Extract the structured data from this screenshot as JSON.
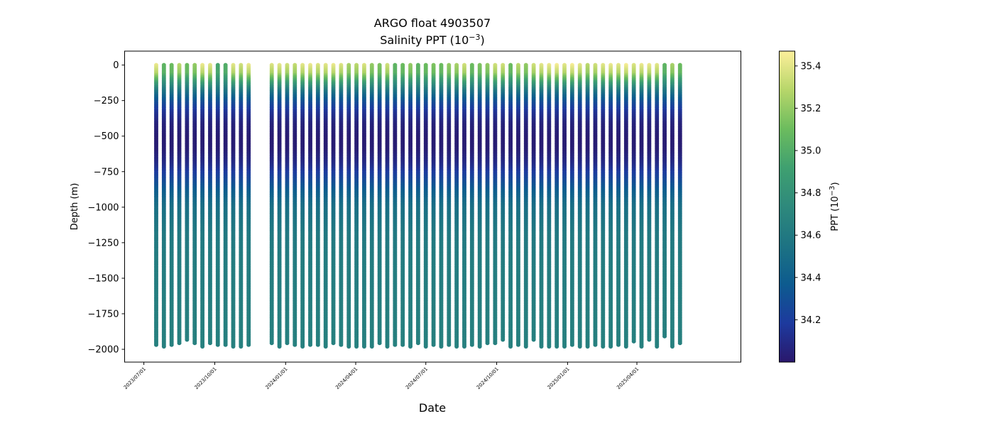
{
  "chart_data": {
    "type": "scatter",
    "title": "ARGO float 4903507",
    "subtitle_prefix": "Salinity PPT (10",
    "subtitle_exp": "−3",
    "subtitle_suffix": ")",
    "xlabel": "Date",
    "ylabel": "Depth (m)",
    "ylim": [
      -2090,
      98
    ],
    "yticks": [
      0,
      -250,
      -500,
      -750,
      -1000,
      -1250,
      -1500,
      -1750,
      -2000
    ],
    "ytick_labels": [
      "0",
      "−250",
      "−500",
      "−750",
      "−1000",
      "−1250",
      "−1500",
      "−1750",
      "−2000"
    ],
    "xlim": [
      "2023-06-06",
      "2025-08-14"
    ],
    "xticks": [
      "2023-07-01",
      "2023-10-01",
      "2024-01-01",
      "2024-04-01",
      "2024-07-01",
      "2024-10-01",
      "2025-01-01",
      "2025-04-01"
    ],
    "xtick_labels": [
      "2023/07/01",
      "2023/10/01",
      "2024/01/01",
      "2024/04/01",
      "2024/07/01",
      "2024/10/01",
      "2025/01/01",
      "2025/04/01"
    ],
    "colorbar": {
      "label_prefix": "PPT (10",
      "label_exp": "−3",
      "label_suffix": ")",
      "range": [
        34.0,
        35.47
      ],
      "ticks": [
        34.2,
        34.4,
        34.6,
        34.8,
        35.0,
        35.2,
        35.4
      ],
      "tick_labels": [
        "34.2",
        "34.4",
        "34.6",
        "34.8",
        "35.0",
        "35.2",
        "35.4"
      ],
      "colormap": "haline",
      "colors": [
        "#2a186c",
        "#1d3a9e",
        "#0d5b8f",
        "#1d7383",
        "#2e897c",
        "#3fa070",
        "#6cbc5e",
        "#b7d66a",
        "#fdef9a"
      ]
    },
    "profile_dates": [
      "2023-07-17",
      "2023-07-27",
      "2023-08-06",
      "2023-08-16",
      "2023-08-26",
      "2023-09-05",
      "2023-09-15",
      "2023-09-25",
      "2023-10-05",
      "2023-10-15",
      "2023-10-25",
      "2023-11-04",
      "2023-11-14",
      "2023-12-14",
      "2023-12-24",
      "2024-01-03",
      "2024-01-13",
      "2024-01-23",
      "2024-02-02",
      "2024-02-12",
      "2024-02-22",
      "2024-03-03",
      "2024-03-13",
      "2024-03-23",
      "2024-04-02",
      "2024-04-12",
      "2024-04-22",
      "2024-05-02",
      "2024-05-12",
      "2024-05-22",
      "2024-06-01",
      "2024-06-11",
      "2024-06-21",
      "2024-07-01",
      "2024-07-11",
      "2024-07-21",
      "2024-07-31",
      "2024-08-10",
      "2024-08-20",
      "2024-08-30",
      "2024-09-09",
      "2024-09-19",
      "2024-09-29",
      "2024-10-09",
      "2024-10-19",
      "2024-10-29",
      "2024-11-08",
      "2024-11-18",
      "2024-11-28",
      "2024-12-08",
      "2024-12-18",
      "2024-12-28",
      "2025-01-07",
      "2025-01-17",
      "2025-01-27",
      "2025-02-06",
      "2025-02-16",
      "2025-02-26",
      "2025-03-08",
      "2025-03-18",
      "2025-03-28",
      "2025-04-07",
      "2025-04-17",
      "2025-04-27",
      "2025-05-07",
      "2025-05-17",
      "2025-05-27"
    ],
    "profile_max_depth": [
      -1970,
      -1980,
      -1975,
      -1965,
      -1935,
      -1960,
      -1980,
      -1965,
      -1975,
      -1975,
      -1980,
      -1980,
      -1975,
      -1965,
      -1980,
      -1960,
      -1975,
      -1985,
      -1970,
      -1975,
      -1980,
      -1965,
      -1975,
      -1985,
      -1980,
      -1980,
      -1980,
      -1965,
      -1980,
      -1970,
      -1970,
      -1980,
      -1965,
      -1980,
      -1975,
      -1985,
      -1975,
      -1980,
      -1990,
      -1970,
      -1985,
      -1960,
      -1965,
      -1940,
      -1990,
      -1975,
      -1980,
      -1940,
      -1980,
      -1990,
      -1980,
      -1980,
      -1970,
      -1985,
      -1980,
      -1975,
      -1985,
      -1985,
      -1975,
      -1985,
      -1955,
      -1985,
      -1935,
      -1980,
      -1910,
      -1990,
      -1965
    ],
    "profile_surface_salinity": [
      35.42,
      35.05,
      35.1,
      35.3,
      35.1,
      35.2,
      35.42,
      35.4,
      34.95,
      35.0,
      35.4,
      35.35,
      35.42,
      35.38,
      35.4,
      35.35,
      35.32,
      35.4,
      35.42,
      35.38,
      35.4,
      35.42,
      35.38,
      35.25,
      35.3,
      35.38,
      35.2,
      35.15,
      35.35,
      35.05,
      35.1,
      35.2,
      35.05,
      35.1,
      35.15,
      35.1,
      35.2,
      35.25,
      35.35,
      35.1,
      35.15,
      35.2,
      35.35,
      35.35,
      35.1,
      35.3,
      35.2,
      35.35,
      35.4,
      35.42,
      35.45,
      35.4,
      35.45,
      35.4,
      35.3,
      35.35,
      35.4,
      35.42,
      35.4,
      35.45,
      35.38,
      35.42,
      35.42,
      35.4,
      35.05,
      35.25,
      35.1
    ],
    "typical_profile": {
      "depth": [
        0,
        -60,
        -100,
        -150,
        -200,
        -260,
        -330,
        -420,
        -520,
        -600,
        -700,
        -800,
        -900,
        -1000,
        -1200,
        -1400,
        -1600,
        -1800,
        -2000
      ],
      "salinity": [
        35.3,
        35.2,
        35.0,
        34.75,
        34.5,
        34.3,
        34.15,
        34.05,
        34.02,
        34.03,
        34.1,
        34.25,
        34.4,
        34.52,
        34.6,
        34.63,
        34.64,
        34.65,
        34.66
      ]
    }
  }
}
